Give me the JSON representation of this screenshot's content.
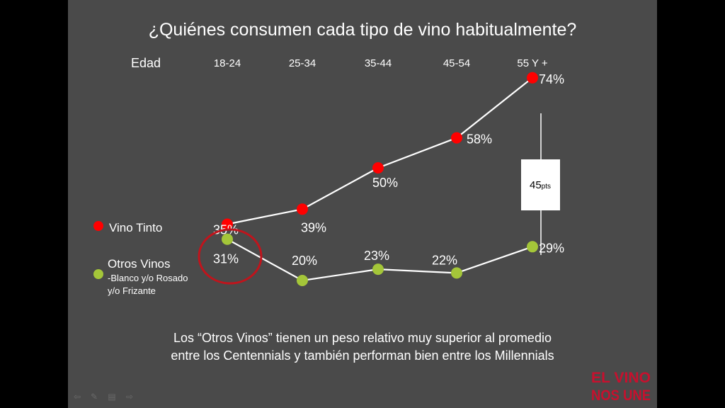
{
  "slide": {
    "title": "¿Quiénes consumen cada tipo de vino habitualmente?",
    "age_header": "Edad",
    "footnote_line1": "Los “Otros Vinos” tienen un peso relativo muy superior al promedio",
    "footnote_line2": "entre los Centennials y también performan bien entre los Millennials",
    "logo_text": "EL VINO NOS UNE",
    "gap_value": "45",
    "gap_unit": "pts",
    "colors": {
      "background": "#4a4a4a",
      "tinto": "#ff0000",
      "otros": "#a4c639",
      "line": "#ffffff",
      "highlight": "#c0141c",
      "logo": "#c8102e"
    }
  },
  "nav_icons": [
    "back-arrow-icon",
    "pen-icon",
    "slides-icon",
    "forward-arrow-icon"
  ],
  "chart_data": {
    "type": "line",
    "categories": [
      "18-24",
      "25-34",
      "35-44",
      "45-54",
      "55 Y +"
    ],
    "series": [
      {
        "name": "Vino Tinto",
        "values": [
          35,
          39,
          50,
          58,
          74
        ],
        "labels": [
          "35%",
          "39%",
          "50%",
          "58%",
          "74%"
        ]
      },
      {
        "name": "Otros Vinos",
        "sublabel_line1": "-Blanco y/o Rosado",
        "sublabel_line2": "y/o Frizante",
        "values": [
          31,
          20,
          23,
          22,
          29
        ],
        "labels": [
          "31%",
          "20%",
          "23%",
          "22%",
          "29%"
        ]
      }
    ],
    "annotation": "45pts",
    "highlighted_category": "18-24"
  }
}
